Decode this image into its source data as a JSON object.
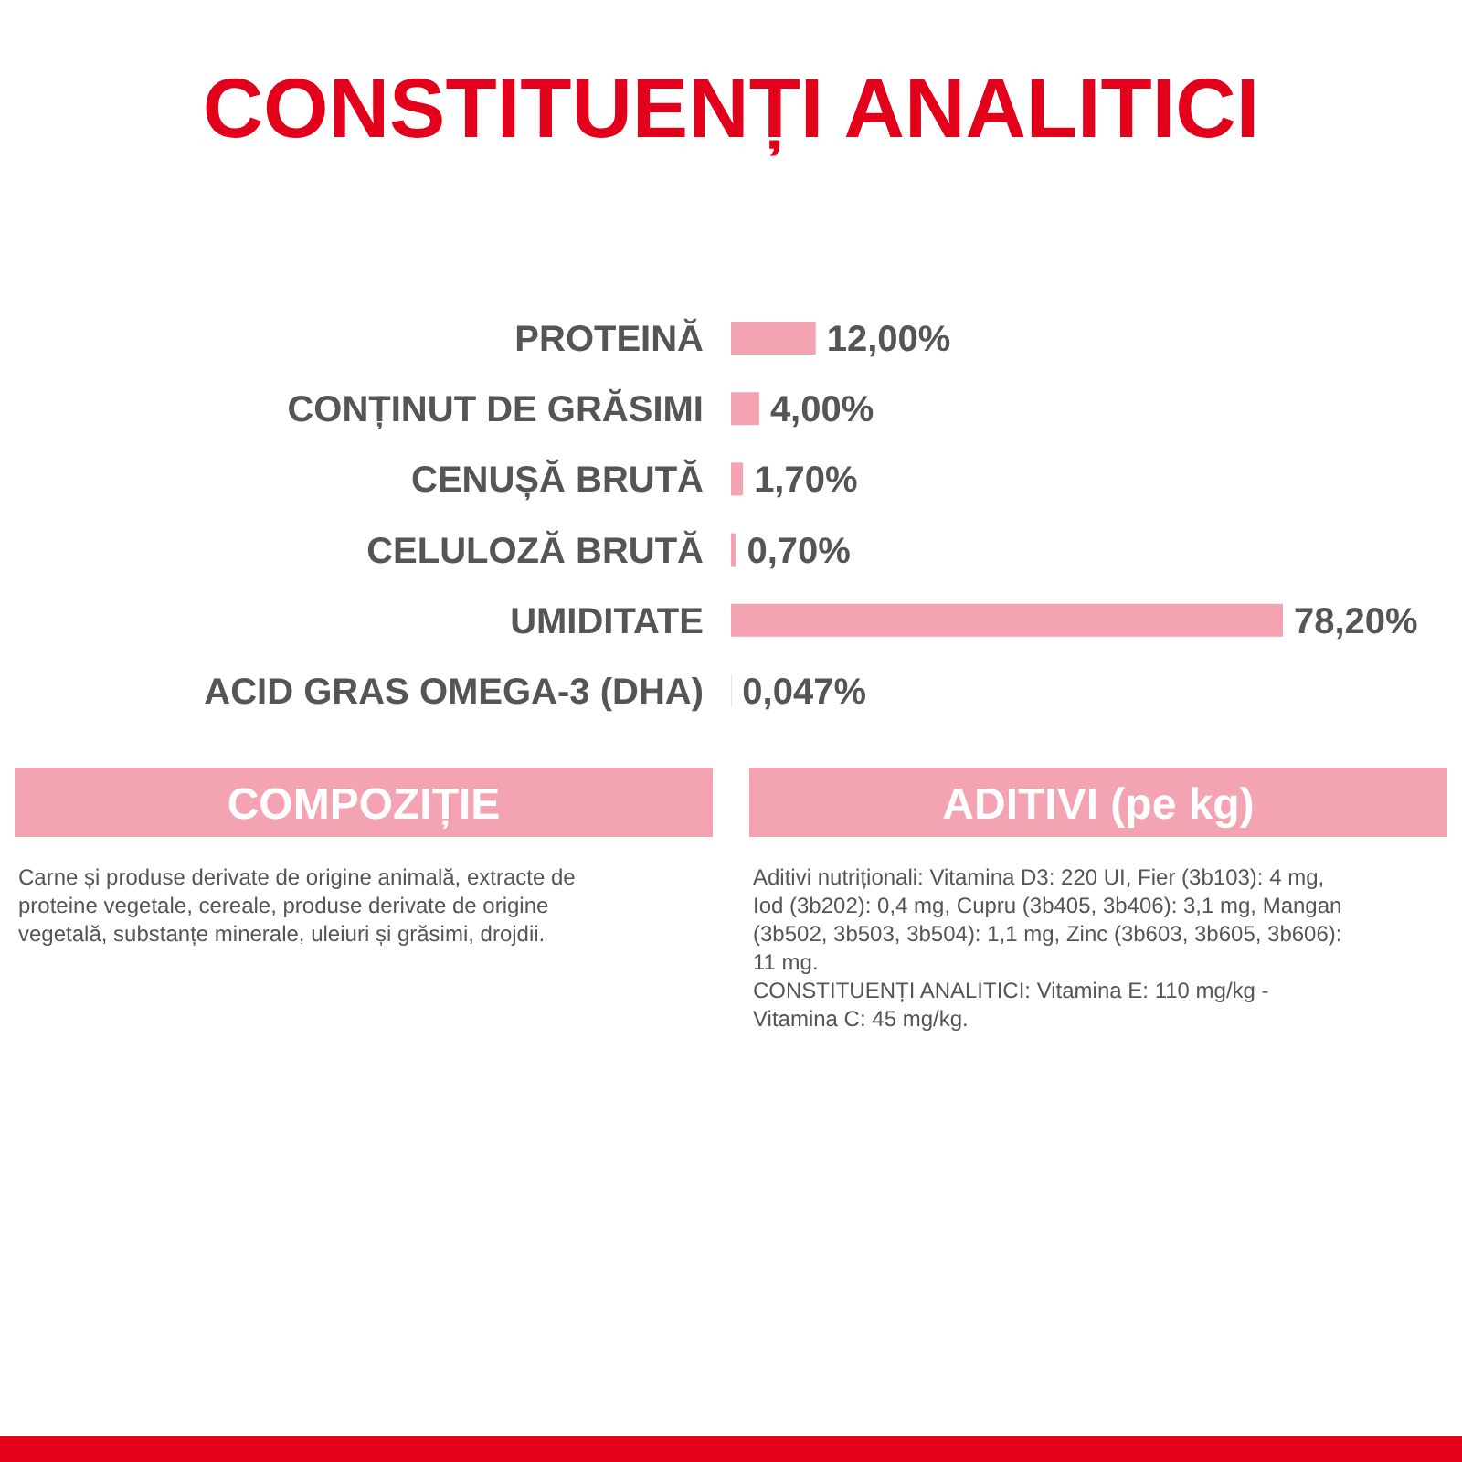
{
  "chart_data": {
    "type": "bar",
    "orientation": "horizontal",
    "title": "CONSTITUENȚI ANALITICI",
    "categories": [
      "PROTEINĂ",
      "CONȚINUT DE GRĂSIMI",
      "CENUȘĂ BRUTĂ",
      "CELULOZĂ BRUTĂ",
      "UMIDITATE",
      "ACID GRAS OMEGA-3 (DHA)"
    ],
    "values": [
      12,
      4,
      1.7,
      0.7,
      78.2,
      0.047
    ],
    "value_labels": [
      "12,00%",
      "4,00%",
      "1,70%",
      "0,70%",
      "78,20%",
      "0,047%"
    ],
    "color": "#f4a3b2",
    "annotations": [
      "COMPOZIȚIE",
      "Carne și produse derivate de origine animală, extracte de\nproteine vegetale, cereale, produse derivate de origine\nvegetală, substanțe minerale, uleiuri și grăsimi, drojdii.",
      "ADITIVI (pe kg)",
      "Aditivi nutriționali: Vitamina D3: 220 UI, Fier (3b103): 4 mg,\nIod (3b202): 0,4 mg, Cupru (3b405, 3b406): 3,1 mg, Mangan\n(3b502, 3b503, 3b504): 1,1 mg, Zinc (3b603, 3b605, 3b606):\n11 mg.\nCONSTITUENȚI ANALITICI: Vitamina E: 110 mg/kg -\nVitamina C: 45 mg/kg."
    ]
  }
}
